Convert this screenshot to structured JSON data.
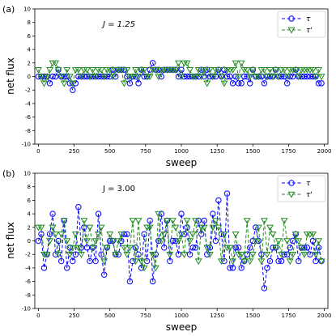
{
  "chart_data": [
    {
      "type": "line",
      "panel_label": "(a)",
      "annotation": "J = 1.25",
      "xlabel": "sweep",
      "ylabel": "net flux",
      "xlim": [
        -25,
        2025
      ],
      "ylim": [
        -10,
        10
      ],
      "xticks": [
        0,
        250,
        500,
        750,
        1000,
        1250,
        1500,
        1750,
        2000
      ],
      "yticks": [
        -10,
        -8,
        -6,
        -4,
        -2,
        0,
        2,
        4,
        6,
        8,
        10
      ],
      "legend_position": "top-right",
      "series": [
        {
          "name": "τ",
          "color": "#0000ff",
          "marker": "circle",
          "style": "dashed",
          "x": [
            0,
            20,
            40,
            60,
            80,
            100,
            120,
            140,
            160,
            180,
            200,
            220,
            240,
            260,
            280,
            300,
            320,
            340,
            360,
            380,
            400,
            420,
            440,
            460,
            480,
            500,
            520,
            540,
            560,
            580,
            600,
            620,
            640,
            660,
            680,
            700,
            720,
            740,
            760,
            780,
            800,
            820,
            840,
            860,
            880,
            900,
            920,
            940,
            960,
            980,
            1000,
            1020,
            1040,
            1060,
            1080,
            1100,
            1120,
            1140,
            1160,
            1180,
            1200,
            1220,
            1240,
            1260,
            1280,
            1300,
            1320,
            1340,
            1360,
            1380,
            1400,
            1420,
            1440,
            1460,
            1480,
            1500,
            1520,
            1540,
            1560,
            1580,
            1600,
            1620,
            1640,
            1660,
            1680,
            1700,
            1720,
            1740,
            1760,
            1780,
            1800,
            1820,
            1840,
            1860,
            1880,
            1900,
            1920,
            1940,
            1960,
            1980
          ],
          "y": [
            0,
            0,
            0,
            0,
            -1,
            0,
            0,
            1,
            0,
            0,
            0,
            -1,
            -2,
            -1,
            0,
            0,
            0,
            0,
            0,
            0,
            0,
            0,
            0,
            0,
            0,
            0,
            1,
            0,
            1,
            1,
            1,
            0,
            -1,
            0,
            0,
            -1,
            1,
            0,
            0,
            1,
            2,
            1,
            1,
            0,
            1,
            1,
            1,
            1,
            1,
            0,
            1,
            0,
            0,
            0,
            0,
            0,
            0,
            1,
            0,
            1,
            0,
            0,
            0,
            1,
            0,
            1,
            0,
            0,
            -1,
            0,
            -1,
            -1,
            0,
            0,
            -1,
            1,
            0,
            0,
            0,
            -1,
            0,
            0,
            0,
            1,
            0,
            0,
            0,
            -1,
            0,
            0,
            1,
            0,
            0,
            0,
            0,
            0,
            0,
            0,
            -1,
            -1
          ]
        },
        {
          "name": "τ'",
          "color": "#228b22",
          "marker": "triangle-down",
          "style": "dashed",
          "x": [
            0,
            20,
            40,
            60,
            80,
            100,
            120,
            140,
            160,
            180,
            200,
            220,
            240,
            260,
            280,
            300,
            320,
            340,
            360,
            380,
            400,
            420,
            440,
            460,
            480,
            500,
            520,
            540,
            560,
            580,
            600,
            620,
            640,
            660,
            680,
            700,
            720,
            740,
            760,
            780,
            800,
            820,
            840,
            860,
            880,
            900,
            920,
            940,
            960,
            980,
            1000,
            1020,
            1040,
            1060,
            1080,
            1100,
            1120,
            1140,
            1160,
            1180,
            1200,
            1220,
            1240,
            1260,
            1280,
            1300,
            1320,
            1340,
            1360,
            1380,
            1400,
            1420,
            1440,
            1460,
            1480,
            1500,
            1520,
            1540,
            1560,
            1580,
            1600,
            1620,
            1640,
            1660,
            1680,
            1700,
            1720,
            1740,
            1760,
            1780,
            1800,
            1820,
            1840,
            1860,
            1880,
            1900,
            1920,
            1940,
            1960,
            1980
          ],
          "y": [
            1,
            0,
            -1,
            0,
            1,
            2,
            2,
            1,
            0,
            -1,
            1,
            0,
            -1,
            1,
            1,
            0,
            1,
            1,
            0,
            1,
            0,
            1,
            1,
            0,
            1,
            1,
            0,
            1,
            1,
            1,
            -1,
            1,
            0,
            0,
            1,
            0,
            1,
            1,
            0,
            0,
            1,
            1,
            0,
            1,
            1,
            1,
            1,
            1,
            1,
            2,
            0,
            2,
            2,
            1,
            0,
            0,
            1,
            0,
            1,
            -1,
            1,
            0,
            1,
            1,
            0,
            -1,
            1,
            1,
            1,
            2,
            0,
            2,
            1,
            1,
            0,
            1,
            0,
            0,
            1,
            1,
            0,
            1,
            0,
            1,
            0,
            1,
            1,
            0,
            1,
            1,
            1,
            0,
            1,
            1,
            1,
            1,
            1,
            0,
            1,
            0
          ]
        }
      ]
    },
    {
      "type": "line",
      "panel_label": "(b)",
      "annotation": "J = 3.00",
      "xlabel": "sweep",
      "ylabel": "net flux",
      "xlim": [
        -25,
        2025
      ],
      "ylim": [
        -10,
        10
      ],
      "xticks": [
        0,
        250,
        500,
        750,
        1000,
        1250,
        1500,
        1750,
        2000
      ],
      "yticks": [
        -10,
        -8,
        -6,
        -4,
        -2,
        0,
        2,
        4,
        6,
        8,
        10
      ],
      "legend_position": "top-right",
      "series": [
        {
          "name": "τ",
          "color": "#0000ff",
          "marker": "circle",
          "style": "dashed",
          "x": [
            0,
            20,
            40,
            60,
            80,
            100,
            120,
            140,
            160,
            180,
            200,
            220,
            240,
            260,
            280,
            300,
            320,
            340,
            360,
            380,
            400,
            420,
            440,
            460,
            480,
            500,
            520,
            540,
            560,
            580,
            600,
            620,
            640,
            660,
            680,
            700,
            720,
            740,
            760,
            780,
            800,
            820,
            840,
            860,
            880,
            900,
            920,
            940,
            960,
            980,
            1000,
            1020,
            1040,
            1060,
            1080,
            1100,
            1120,
            1140,
            1160,
            1180,
            1200,
            1220,
            1240,
            1260,
            1280,
            1300,
            1320,
            1340,
            1360,
            1380,
            1400,
            1420,
            1440,
            1460,
            1480,
            1500,
            1520,
            1540,
            1560,
            1580,
            1600,
            1620,
            1640,
            1660,
            1680,
            1700,
            1720,
            1740,
            1760,
            1780,
            1800,
            1820,
            1840,
            1860,
            1880,
            1900,
            1920,
            1940,
            1960,
            1980
          ],
          "y": [
            0,
            1,
            -4,
            -2,
            1,
            4,
            -2,
            0,
            -3,
            3,
            -4,
            -1,
            -3,
            -2,
            5,
            -1,
            2,
            -1,
            -3,
            -1,
            -3,
            4,
            -2,
            -5,
            -1,
            0,
            0,
            -2,
            -2,
            0,
            1,
            1,
            -6,
            -3,
            -1,
            -2,
            -4,
            1,
            -3,
            3,
            -6,
            -2,
            0,
            4,
            -1,
            3,
            -3,
            0,
            0,
            -2,
            4,
            1,
            2,
            -2,
            -1,
            -1,
            3,
            1,
            3,
            -2,
            -1,
            4,
            0,
            6,
            1,
            -3,
            7,
            -4,
            -4,
            -1,
            -1,
            -4,
            -3,
            -2,
            -1,
            0,
            2,
            0,
            -2,
            -7,
            -4,
            -3,
            -1,
            -1,
            -3,
            -3,
            -2,
            -2,
            -1,
            0,
            1,
            -3,
            -1,
            -1,
            -1,
            -2,
            0,
            -3,
            -1,
            -3
          ]
        },
        {
          "name": "τ'",
          "color": "#228b22",
          "marker": "triangle-down",
          "style": "dashed",
          "x": [
            0,
            20,
            40,
            60,
            80,
            100,
            120,
            140,
            160,
            180,
            200,
            220,
            240,
            260,
            280,
            300,
            320,
            340,
            360,
            380,
            400,
            420,
            440,
            460,
            480,
            500,
            520,
            540,
            560,
            580,
            600,
            620,
            640,
            660,
            680,
            700,
            720,
            740,
            760,
            780,
            800,
            820,
            840,
            860,
            880,
            900,
            920,
            940,
            960,
            980,
            1000,
            1020,
            1040,
            1060,
            1080,
            1100,
            1120,
            1140,
            1160,
            1180,
            1200,
            1220,
            1240,
            1260,
            1280,
            1300,
            1320,
            1340,
            1360,
            1380,
            1400,
            1420,
            1440,
            1460,
            1480,
            1500,
            1520,
            1540,
            1560,
            1580,
            1600,
            1620,
            1640,
            1660,
            1680,
            1700,
            1720,
            1740,
            1760,
            1780,
            1800,
            1820,
            1840,
            1860,
            1880,
            1900,
            1920,
            1940,
            1960,
            1980
          ],
          "y": [
            2,
            2,
            -2,
            -2,
            0,
            2,
            1,
            -2,
            1,
            3,
            0,
            -2,
            -1,
            1,
            -1,
            -2,
            3,
            0,
            2,
            -1,
            0,
            1,
            2,
            -3,
            -1,
            1,
            0,
            -2,
            0,
            1,
            -1,
            -2,
            -1,
            3,
            -3,
            3,
            -3,
            -4,
            2,
            2,
            -2,
            -4,
            4,
            0,
            1,
            3,
            -2,
            3,
            2,
            0,
            1,
            -2,
            3,
            0,
            1,
            3,
            -3,
            2,
            2,
            -1,
            -2,
            2,
            3,
            2,
            -3,
            1,
            -1,
            -1,
            -3,
            1,
            -2,
            -2,
            -3,
            3,
            -3,
            -2,
            0,
            2,
            -3,
            3,
            -2,
            2,
            1,
            -1,
            0,
            -2,
            3,
            0,
            -3,
            -2,
            1,
            0,
            -1,
            -2,
            1,
            1,
            1,
            -2,
            0,
            -3
          ]
        }
      ]
    }
  ]
}
